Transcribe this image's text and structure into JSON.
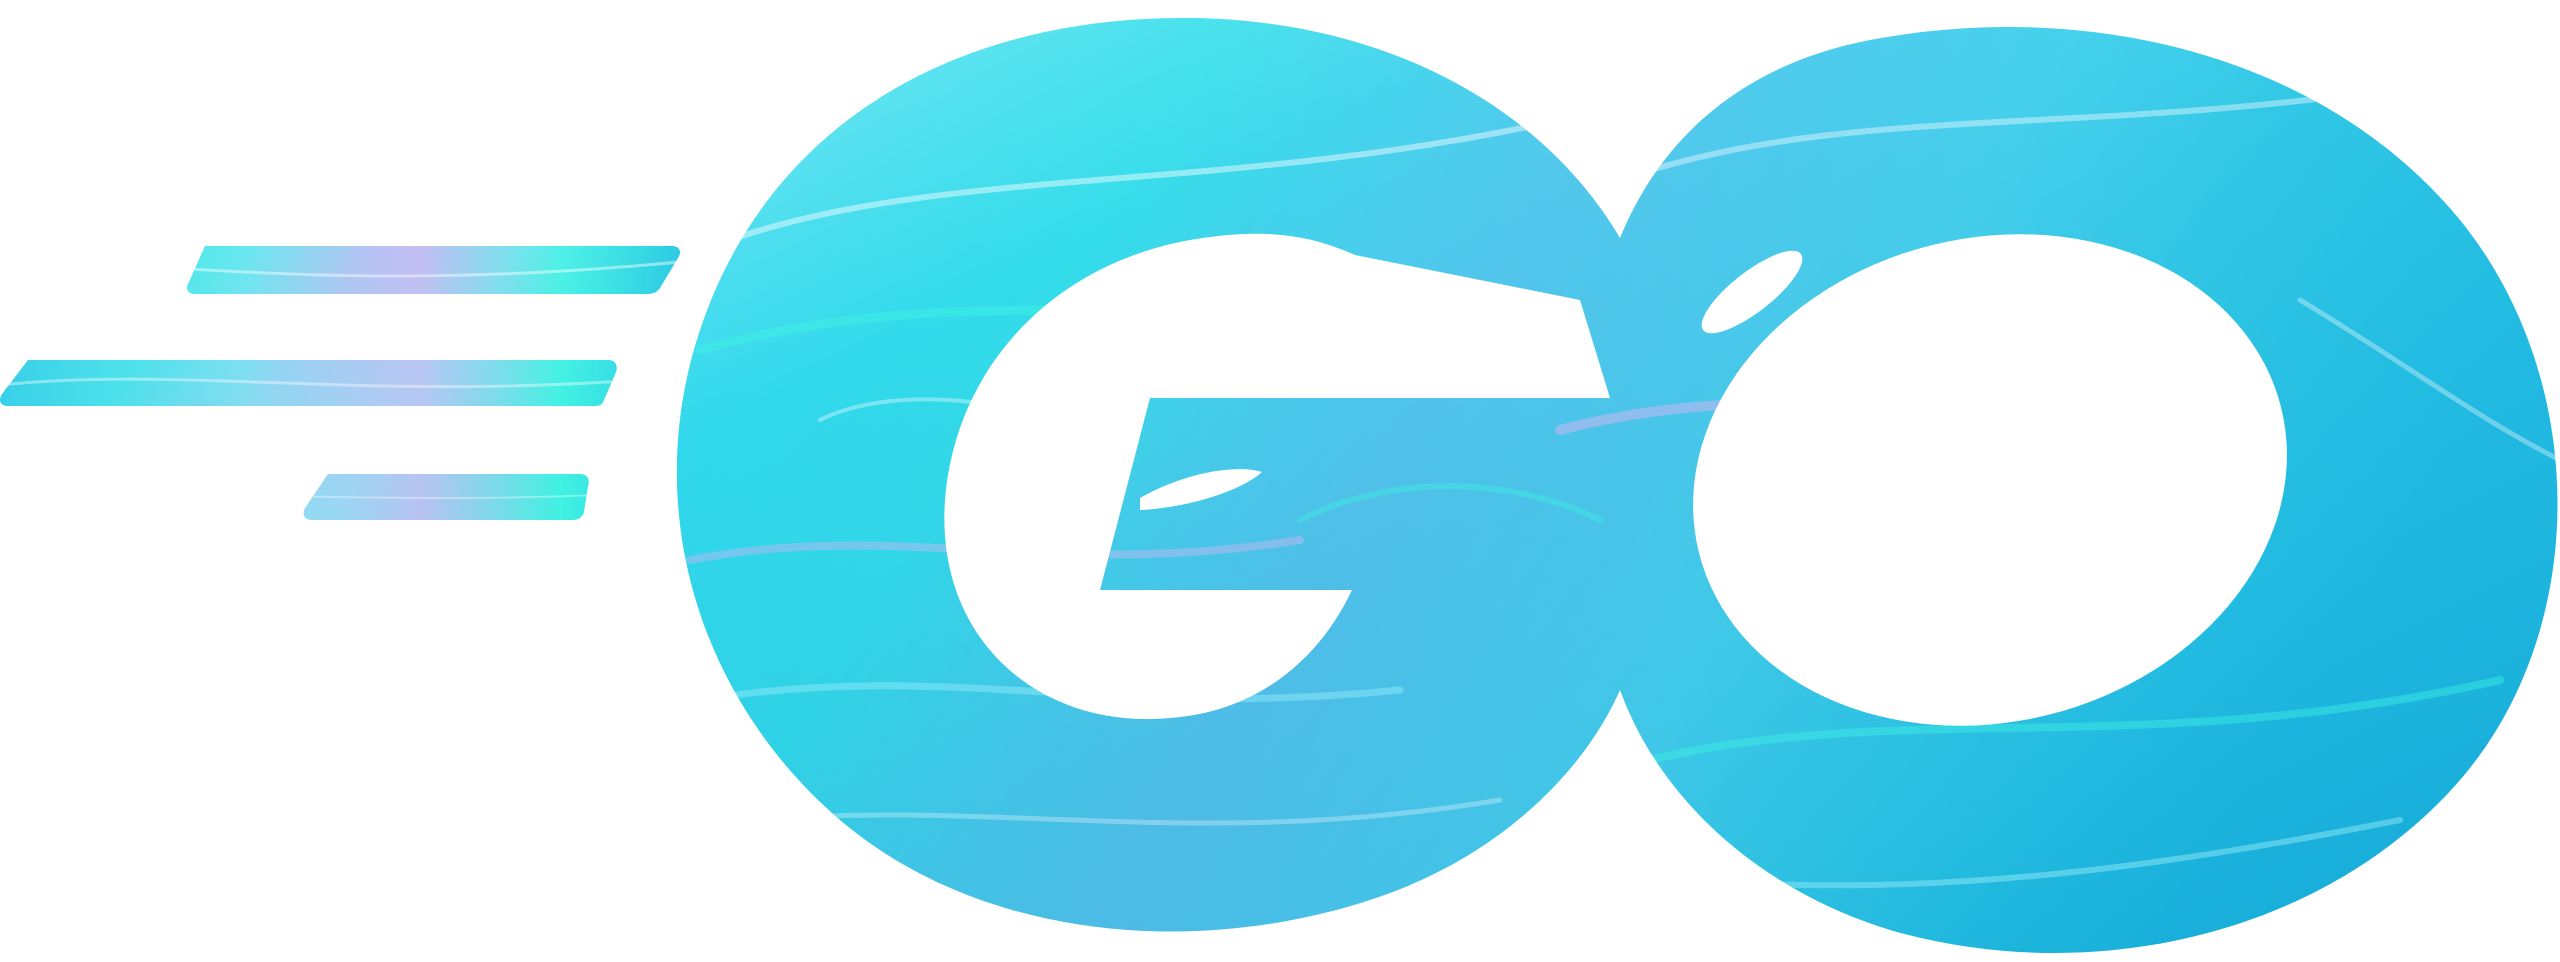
{
  "logo": {
    "wordmark": "GO",
    "brand_name": "Go"
  },
  "colors": {
    "background": "#ffffff",
    "base": "#26bfe4",
    "light": "#8feaf7",
    "mint": "#3ff2e2",
    "lavender": "#c9b8f2",
    "deep": "#14a9d6"
  },
  "icons": [
    "speed-lines-icon"
  ]
}
